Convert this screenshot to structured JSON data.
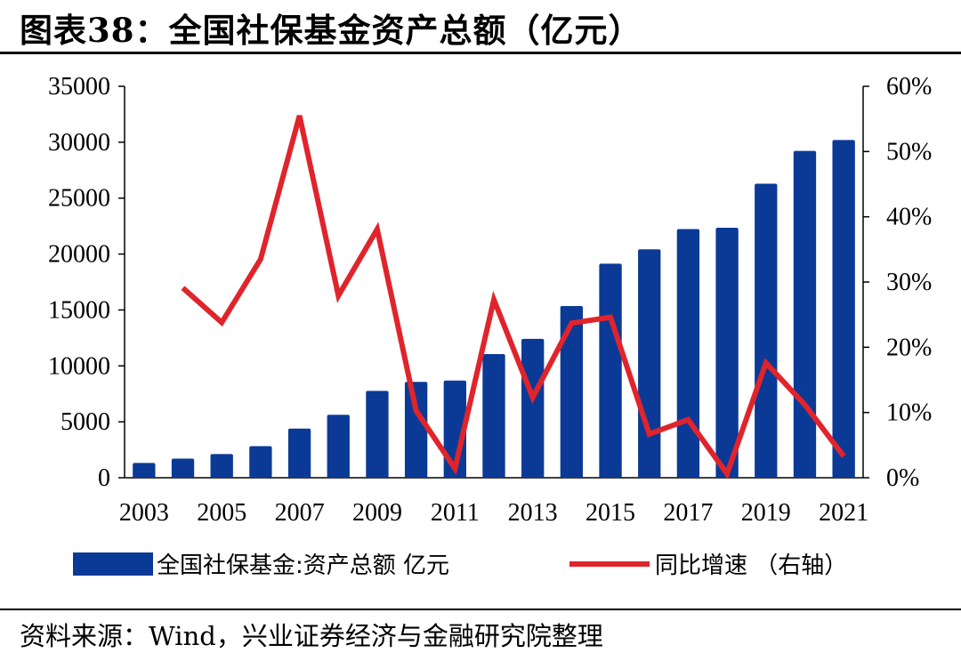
{
  "title": "图表38：全国社保基金资产总额（亿元）",
  "source": "资料来源：Wind，兴业证券经济与金融研究院整理",
  "colors": {
    "bar": "#0b3a96",
    "line": "#e0242b",
    "axis": "#000000"
  },
  "chart_data": {
    "type": "bar",
    "title": "全国社保基金资产总额（亿元）",
    "categories": [
      "2003",
      "2004",
      "2005",
      "2006",
      "2007",
      "2008",
      "2009",
      "2010",
      "2011",
      "2012",
      "2013",
      "2014",
      "2015",
      "2016",
      "2017",
      "2018",
      "2019",
      "2020",
      "2021"
    ],
    "x_tick_labels": [
      "2003",
      "2005",
      "2007",
      "2009",
      "2011",
      "2013",
      "2015",
      "2017",
      "2019",
      "2021"
    ],
    "series": [
      {
        "name": "全国社保基金:资产总额 亿元",
        "type": "bar",
        "axis": "left",
        "values": [
          1325,
          1711,
          2118,
          2828,
          4397,
          5624,
          7767,
          8567,
          8688,
          11060,
          12416,
          15356,
          19138,
          20423,
          22231,
          22354,
          26285,
          29226,
          30198
        ]
      },
      {
        "name": "同比增速 （右轴）",
        "type": "line",
        "axis": "right",
        "values": [
          null,
          0.291,
          0.238,
          0.335,
          0.555,
          0.279,
          0.381,
          0.103,
          0.014,
          0.273,
          0.123,
          0.237,
          0.246,
          0.067,
          0.089,
          0.006,
          0.176,
          0.112,
          0.033
        ]
      }
    ],
    "y_left": {
      "range": [
        0,
        35000
      ],
      "ticks": [
        "0",
        "5000",
        "10000",
        "15000",
        "20000",
        "25000",
        "30000",
        "35000"
      ]
    },
    "y_right": {
      "range": [
        0,
        0.6
      ],
      "ticks": [
        "0%",
        "10%",
        "20%",
        "30%",
        "40%",
        "50%",
        "60%"
      ]
    },
    "legend": {
      "position": "bottom",
      "items": [
        "全国社保基金:资产总额 亿元",
        "同比增速 （右轴）"
      ]
    },
    "grid": false
  }
}
